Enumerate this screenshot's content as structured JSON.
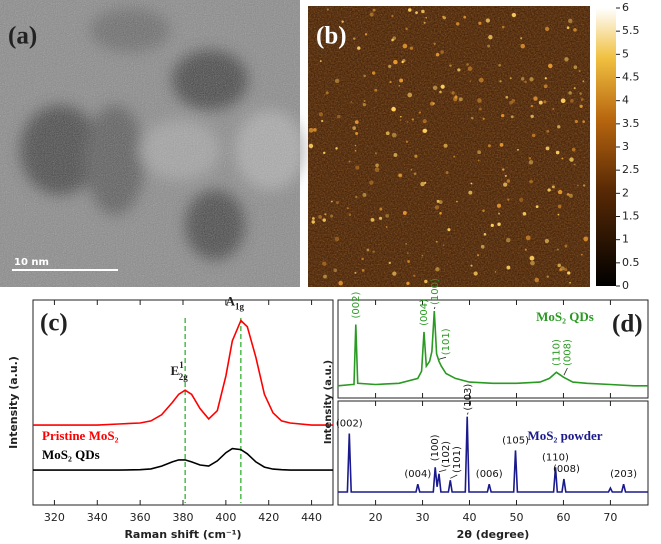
{
  "panels": {
    "a": {
      "label": "(a)",
      "scale_bar": "10 nm"
    },
    "b": {
      "label": "(b)",
      "colorbar": {
        "lim": [
          0,
          6
        ],
        "ticks": [
          0,
          0.5,
          1,
          1.5,
          2,
          2.5,
          3,
          3.5,
          4,
          4.5,
          5,
          5.5,
          6
        ]
      }
    }
  },
  "chart_data": [
    {
      "type": "line",
      "label": "(c)",
      "xlabel": "Raman shift (cm⁻¹)",
      "ylabel": "Intensity (a.u.)",
      "xlim": [
        310,
        450
      ],
      "xticks": [
        320,
        340,
        360,
        380,
        400,
        420,
        440
      ],
      "ylim": [
        0,
        10
      ],
      "x": [
        310,
        320,
        330,
        340,
        350,
        360,
        365,
        370,
        375,
        378,
        381,
        384,
        388,
        392,
        396,
        400,
        403,
        407,
        410,
        414,
        418,
        422,
        426,
        430,
        440,
        450
      ],
      "series": [
        {
          "name": "Pristine MoS₂",
          "color": "#ff0000",
          "values": [
            3.9,
            3.9,
            3.9,
            3.9,
            3.95,
            4.0,
            4.1,
            4.4,
            5.0,
            5.4,
            5.6,
            5.4,
            4.7,
            4.2,
            4.6,
            6.3,
            8.0,
            9.0,
            8.7,
            7.2,
            5.4,
            4.5,
            4.1,
            4.0,
            3.9,
            3.9
          ]
        },
        {
          "name": "MoS₂ QDs",
          "color": "#000000",
          "values": [
            1.7,
            1.7,
            1.7,
            1.7,
            1.7,
            1.72,
            1.76,
            1.9,
            2.1,
            2.2,
            2.2,
            2.1,
            1.95,
            1.9,
            2.15,
            2.55,
            2.75,
            2.7,
            2.5,
            2.1,
            1.85,
            1.75,
            1.72,
            1.7,
            1.7,
            1.7
          ]
        }
      ],
      "vlines": [
        381,
        407
      ],
      "vline_color": "#22aa22",
      "peak_labels": [
        {
          "text": "E",
          "sup": "1",
          "sub": "2g"
        },
        {
          "text": "A",
          "sub": "1g"
        }
      ]
    },
    {
      "type": "stacked-line",
      "label": "(d)",
      "xlabel": "2θ (degree)",
      "ylabel": "Intensity (a.u.)",
      "xlim": [
        12,
        78
      ],
      "xticks": [
        20,
        30,
        40,
        50,
        60,
        70
      ],
      "series": [
        {
          "name": "MoS₂ QDs",
          "color": "#2a9a22",
          "ylim": [
            0,
            8
          ],
          "x": [
            12,
            15,
            15.4,
            15.8,
            16.2,
            20,
            25,
            29,
            29.8,
            30.3,
            30.8,
            31.5,
            32,
            32.5,
            33,
            33.5,
            34,
            35,
            37,
            40,
            45,
            50,
            55,
            57,
            58.5,
            60,
            62,
            65,
            70,
            75,
            78
          ],
          "values": [
            1.0,
            1.1,
            1.1,
            6.0,
            1.2,
            1.1,
            1.2,
            1.6,
            2.2,
            5.4,
            2.6,
            3.0,
            3.8,
            7.1,
            3.6,
            3.0,
            2.6,
            2.0,
            1.6,
            1.3,
            1.2,
            1.2,
            1.3,
            1.6,
            2.1,
            1.7,
            1.3,
            1.2,
            1.1,
            1.0,
            1.0
          ],
          "peaks": [
            {
              "label": "(002)",
              "x": 15.8,
              "vertical": true
            },
            {
              "label": "(004)",
              "x": 30.3,
              "vertical": true
            },
            {
              "label": "(100)",
              "x": 32.5,
              "vertical": true
            },
            {
              "label": "(101)",
              "x": 33.5,
              "vertical": true
            },
            {
              "label": "(110)",
              "x": 58.5,
              "vertical": true
            },
            {
              "label": "(008)",
              "x": 60.1,
              "vertical": true
            }
          ]
        },
        {
          "name": "MoS₂ powder",
          "color": "#1a1a8c",
          "ylim": [
            0,
            8
          ],
          "x": [
            12,
            14.0,
            14.4,
            14.8,
            20,
            28.6,
            29.0,
            29.4,
            32.3,
            32.7,
            33.1,
            33.5,
            33.9,
            35.5,
            35.9,
            36.3,
            39.1,
            39.5,
            39.9,
            43.8,
            44.2,
            44.6,
            49.4,
            49.8,
            50.2,
            55,
            57.9,
            58.3,
            58.7,
            59.7,
            60.1,
            60.5,
            69.6,
            70.0,
            70.4,
            72.4,
            72.8,
            73.2,
            78
          ],
          "values": [
            1.0,
            1.0,
            5.5,
            1.0,
            1.0,
            1.0,
            1.6,
            1.0,
            1.0,
            2.9,
            1.4,
            2.4,
            1.0,
            1.0,
            1.9,
            1.0,
            1.0,
            6.8,
            1.0,
            1.0,
            1.6,
            1.0,
            1.0,
            4.2,
            1.0,
            1.0,
            1.0,
            2.9,
            1.0,
            1.0,
            2.0,
            1.0,
            1.0,
            1.3,
            1.0,
            1.0,
            1.6,
            1.0,
            1.0
          ],
          "peaks": [
            {
              "label": "(002)",
              "x": 14.4,
              "vertical": false
            },
            {
              "label": "(004)",
              "x": 29.0,
              "vertical": false
            },
            {
              "label": "(100)",
              "x": 32.7,
              "vertical": true
            },
            {
              "label": "(102)",
              "x": 33.5,
              "vertical": true
            },
            {
              "label": "(101)",
              "x": 35.9,
              "vertical": true
            },
            {
              "label": "(103)",
              "x": 39.5,
              "vertical": true
            },
            {
              "label": "(006)",
              "x": 44.2,
              "vertical": false
            },
            {
              "label": "(105)",
              "x": 49.8,
              "vertical": false
            },
            {
              "label": "(110)",
              "x": 58.3,
              "vertical": false
            },
            {
              "label": "(008)",
              "x": 60.1,
              "vertical": false
            },
            {
              "label": "(203)",
              "x": 72.8,
              "vertical": false
            }
          ]
        }
      ]
    }
  ]
}
